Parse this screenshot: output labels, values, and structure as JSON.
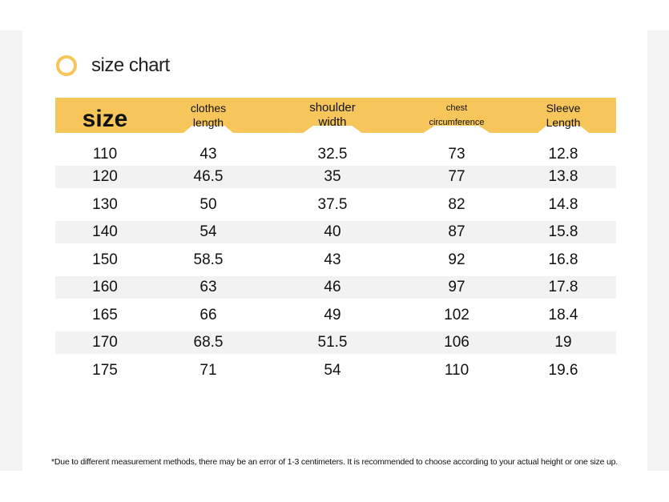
{
  "title": "size chart",
  "colors": {
    "accent": "#f7c65a",
    "stripe": "#f2f2f2",
    "text": "#111111"
  },
  "headers": {
    "size": "size",
    "clothes_length": [
      "clothes",
      "length"
    ],
    "shoulder_width": [
      "shoulder",
      "width"
    ],
    "chest_circumference": [
      "chest",
      "circumference"
    ],
    "sleeve_length": [
      "Sleeve",
      "Length"
    ]
  },
  "rows": [
    [
      "110",
      "43",
      "32.5",
      "73",
      "12.8"
    ],
    [
      "120",
      "46.5",
      "35",
      "77",
      "13.8"
    ],
    [
      "130",
      "50",
      "37.5",
      "82",
      "14.8"
    ],
    [
      "140",
      "54",
      "40",
      "87",
      "15.8"
    ],
    [
      "150",
      "58.5",
      "43",
      "92",
      "16.8"
    ],
    [
      "160",
      "63",
      "46",
      "97",
      "17.8"
    ],
    [
      "165",
      "66",
      "49",
      "102",
      "18.4"
    ],
    [
      "170",
      "68.5",
      "51.5",
      "106",
      "19"
    ],
    [
      "175",
      "71",
      "54",
      "110",
      "19.6"
    ]
  ],
  "note": "*Due to different measurement methods, there may be an error of 1-3 centimeters. It is recommended to choose according to your actual height or one size up."
}
